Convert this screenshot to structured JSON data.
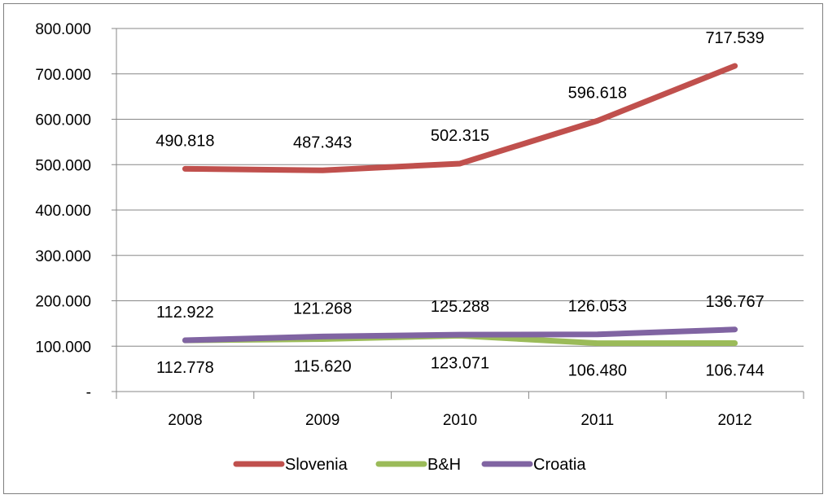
{
  "chart_data": {
    "type": "line",
    "categories": [
      "2008",
      "2009",
      "2010",
      "2011",
      "2012"
    ],
    "series": [
      {
        "name": "Slovenia",
        "color": "#c0504d",
        "values": [
          490818,
          487343,
          502315,
          596618,
          717539
        ],
        "labels": [
          "490.818",
          "487.343",
          "502.315",
          "596.618",
          "717.539"
        ]
      },
      {
        "name": "B&H",
        "color": "#9bbb59",
        "values": [
          112778,
          115620,
          123071,
          106480,
          106744
        ],
        "labels": [
          "112.778",
          "115.620",
          "123.071",
          "106.480",
          "106.744"
        ]
      },
      {
        "name": "Croatia",
        "color": "#8064a2",
        "values": [
          112922,
          121268,
          125288,
          126053,
          136767
        ],
        "labels": [
          "112.922",
          "121.268",
          "125.288",
          "126.053",
          "136.767"
        ]
      }
    ],
    "ylim": [
      0,
      800000
    ],
    "y_ticks": [
      0,
      100000,
      200000,
      300000,
      400000,
      500000,
      600000,
      700000,
      800000
    ],
    "y_tick_labels": [
      "-",
      "100.000",
      "200.000",
      "300.000",
      "400.000",
      "500.000",
      "600.000",
      "700.000",
      "800.000"
    ],
    "grid": true,
    "legend_position": "bottom"
  }
}
